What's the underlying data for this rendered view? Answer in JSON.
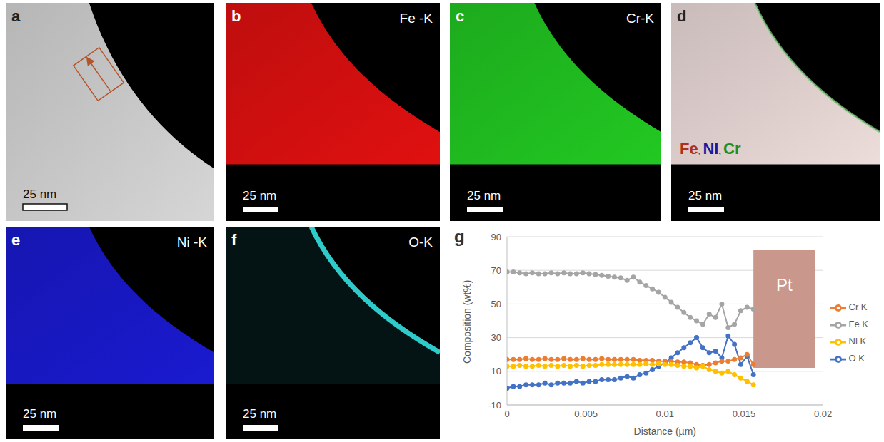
{
  "figure": {
    "panels": [
      {
        "letter": "a",
        "scale_bar": "25 nm"
      },
      {
        "letter": "b",
        "label": "Fe -K",
        "color": "#e01010",
        "scale_bar": "25 nm"
      },
      {
        "letter": "c",
        "label": "Cr-K",
        "color": "#22c822",
        "scale_bar": "25 nm"
      },
      {
        "letter": "d",
        "legend": [
          {
            "text": "Fe",
            "color": "#b03020"
          },
          {
            "text": "NI",
            "color": "#1a1aa0"
          },
          {
            "text": "Cr",
            "color": "#1f8f1f"
          }
        ],
        "separator": ",",
        "scale_bar": "25 nm"
      },
      {
        "letter": "e",
        "label": "Ni -K",
        "color": "#1a1ad0",
        "scale_bar": "25 nm"
      },
      {
        "letter": "f",
        "label": "O-K",
        "color": "#33e0e0",
        "scale_bar": "25 nm"
      }
    ],
    "chart_letter": "g"
  },
  "chart_data": {
    "type": "line",
    "x_label": "Distance (µm)",
    "y_label": "Composition (wt%)",
    "xlim": [
      0,
      0.02
    ],
    "xticks": [
      0,
      0.005,
      0.01,
      0.015,
      0.02
    ],
    "ylim": [
      -10,
      90
    ],
    "yticks": [
      -10,
      10,
      30,
      50,
      70,
      90
    ],
    "grid": true,
    "legend": "right",
    "marker": "circle",
    "x": [
      0,
      0.0004,
      0.0008,
      0.0012,
      0.0016,
      0.002,
      0.0024,
      0.0028,
      0.0032,
      0.0036,
      0.004,
      0.0044,
      0.0048,
      0.0052,
      0.0056,
      0.006,
      0.0064,
      0.0068,
      0.0072,
      0.0076,
      0.008,
      0.0084,
      0.0088,
      0.0092,
      0.0096,
      0.01,
      0.0104,
      0.0108,
      0.0112,
      0.0116,
      0.012,
      0.0124,
      0.0128,
      0.0132,
      0.0136,
      0.014,
      0.0144,
      0.0148,
      0.0152,
      0.0156
    ],
    "series": [
      {
        "name": "O K",
        "color": "#4472c4",
        "values": [
          0,
          1,
          1,
          2,
          2,
          2,
          3,
          2,
          3,
          3,
          3,
          4,
          3,
          4,
          4,
          5,
          5,
          5,
          6,
          7,
          6,
          8,
          9,
          11,
          13,
          15,
          18,
          21,
          24,
          27,
          30,
          24,
          21,
          22,
          18,
          31,
          26,
          14,
          19,
          8
        ]
      },
      {
        "name": "Cr K",
        "color": "#ed7d31",
        "values": [
          17,
          17,
          17,
          17.5,
          17,
          17,
          17.5,
          17,
          17,
          17.5,
          17,
          17,
          17.5,
          17,
          17,
          17.5,
          17,
          17,
          17,
          17,
          17,
          16.5,
          16.5,
          16.5,
          16,
          16,
          16,
          15.5,
          15.5,
          15,
          14,
          13.5,
          14,
          15,
          16,
          16,
          17,
          18,
          20,
          14
        ]
      },
      {
        "name": "Fe K",
        "color": "#a5a5a5",
        "values": [
          69,
          69,
          68.5,
          68,
          68.5,
          68,
          68,
          68.5,
          68,
          68.5,
          68,
          68,
          68.5,
          68,
          67.5,
          67,
          66.5,
          66,
          65.5,
          64,
          66,
          63,
          61,
          59,
          57,
          54,
          51,
          48,
          45,
          42,
          40,
          38,
          44,
          42,
          50,
          36,
          38,
          46,
          48,
          47
        ]
      },
      {
        "name": "Ni K",
        "color": "#ffc000",
        "values": [
          13,
          13,
          13.5,
          13,
          13,
          13.5,
          13,
          13.5,
          13,
          13.5,
          13,
          13.5,
          13,
          13.5,
          13.5,
          14,
          14,
          14,
          14,
          14,
          14,
          14,
          14.5,
          14,
          14.5,
          14,
          14,
          13.5,
          13,
          13,
          12,
          13,
          11,
          10,
          9,
          10,
          8,
          6,
          4,
          2
        ]
      }
    ],
    "region": {
      "label": "Pt",
      "x": [
        0.0156,
        0.0195
      ],
      "y": [
        12,
        82
      ],
      "color": "#c9978b"
    }
  }
}
